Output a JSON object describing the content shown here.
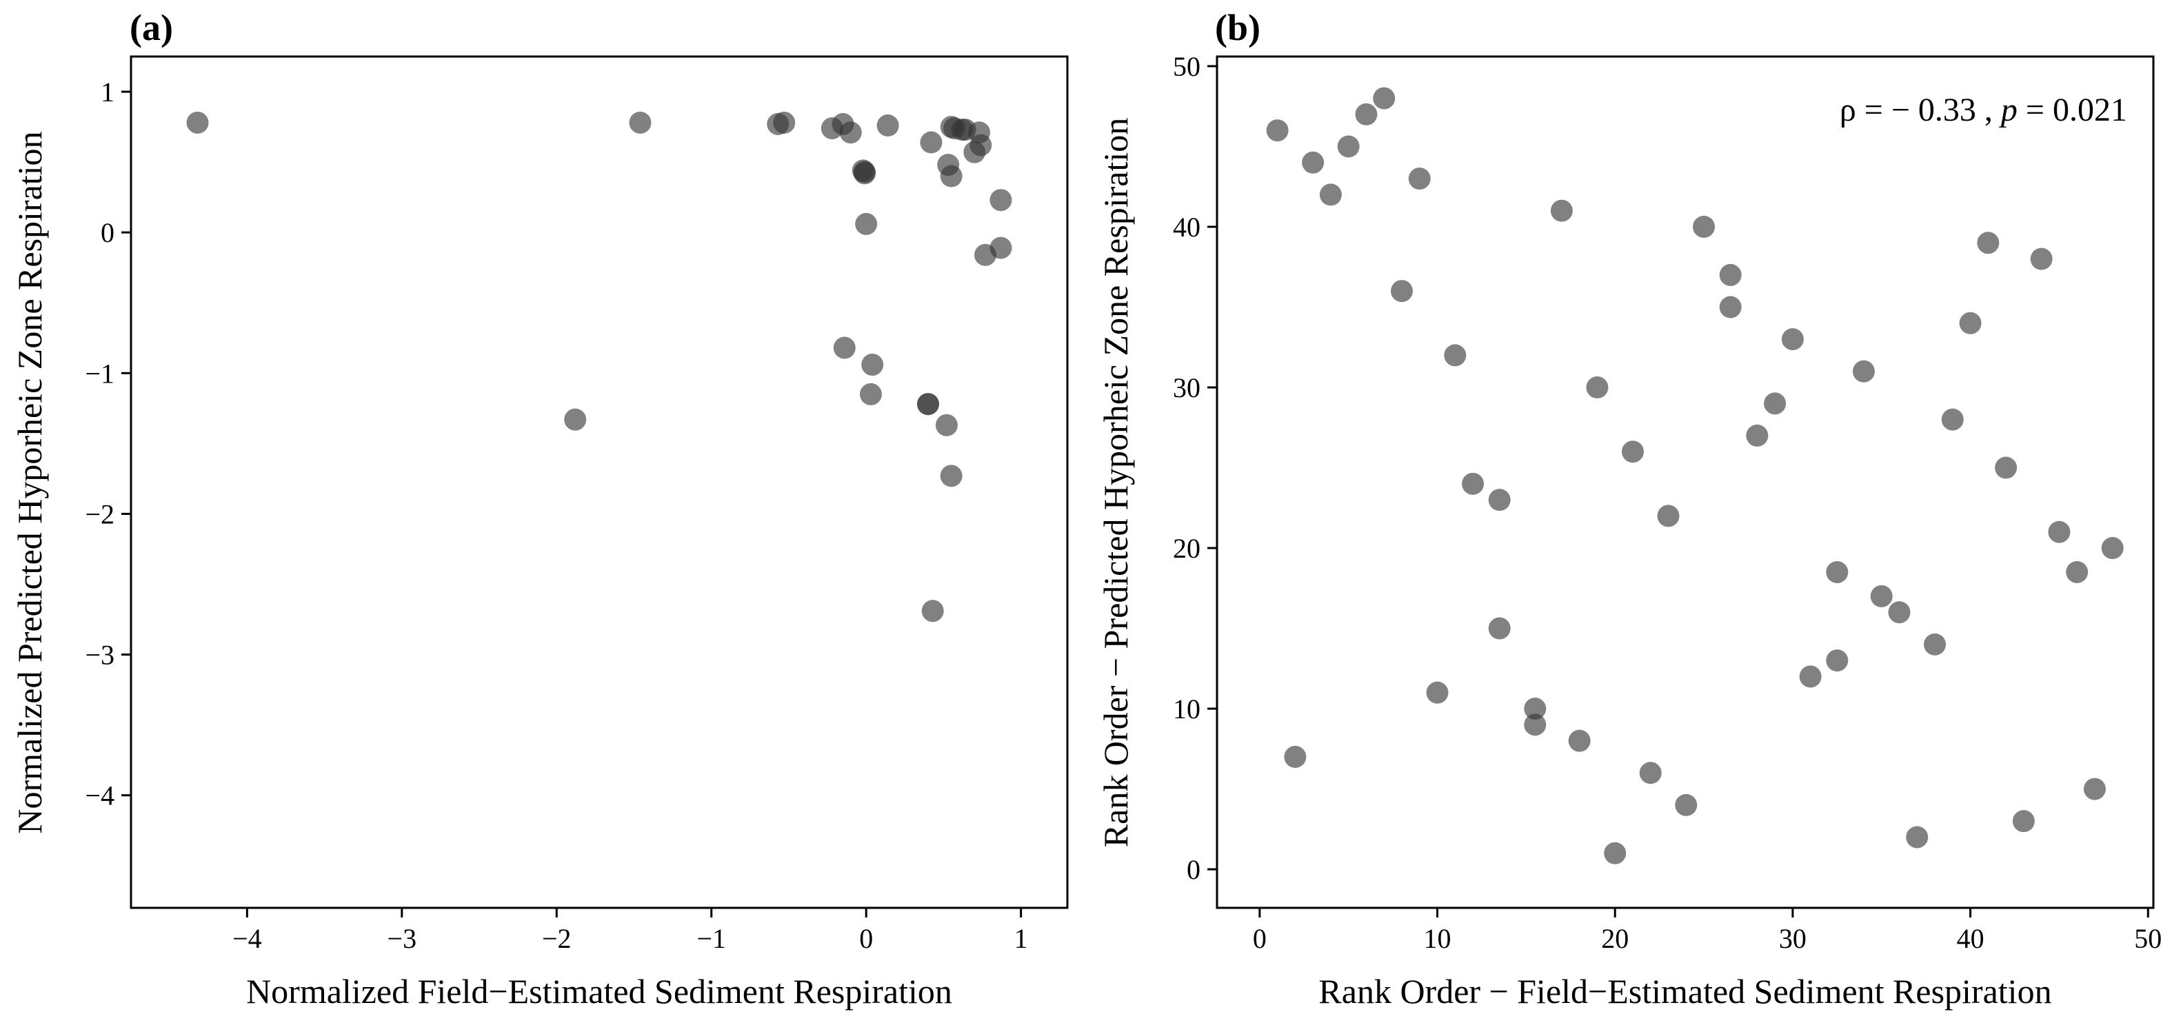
{
  "chart_data": [
    {
      "type": "scatter",
      "panel_label": "(a)",
      "title": "",
      "xlabel": "Normalized Field−Estimated Sediment Respiration",
      "ylabel": "Normalized Predicted Hyporheic Zone Respiration",
      "xlim": [
        -4.75,
        1.3
      ],
      "ylim": [
        -4.8,
        1.25
      ],
      "xticks": [
        -4,
        -3,
        -2,
        -1,
        0,
        1
      ],
      "xtick_labels": [
        "−4",
        "−3",
        "−2",
        "−1",
        "0",
        "1"
      ],
      "yticks": [
        -4,
        -3,
        -2,
        -1,
        0,
        1
      ],
      "ytick_labels": [
        "−4",
        "−3",
        "−2",
        "−1",
        "0",
        "1"
      ],
      "grid": false,
      "legend": "none",
      "point_color": "#333333",
      "series": [
        {
          "x": [
            -4.32,
            -1.46,
            -1.88,
            -0.57,
            -0.53,
            -0.22,
            -0.15,
            -0.1,
            0.14,
            -0.01,
            -0.02,
            -0.01,
            0.0,
            -0.14,
            0.04,
            0.03,
            0.42,
            0.4,
            0.53,
            0.55,
            0.55,
            0.57,
            0.62,
            0.64,
            0.73,
            0.7,
            0.74,
            0.87,
            0.77,
            0.87,
            0.4,
            0.52,
            0.55,
            0.43
          ],
          "y": [
            0.78,
            0.78,
            -1.33,
            0.77,
            0.78,
            0.74,
            0.77,
            0.71,
            0.76,
            0.43,
            0.44,
            0.42,
            0.06,
            -0.82,
            -0.94,
            -1.15,
            0.64,
            -1.22,
            0.48,
            0.4,
            0.75,
            0.74,
            0.73,
            0.73,
            0.71,
            0.57,
            0.62,
            0.23,
            -0.16,
            -0.11,
            -1.22,
            -1.37,
            -1.73,
            -2.69
          ]
        }
      ]
    },
    {
      "type": "scatter",
      "panel_label": "(b)",
      "title": "",
      "xlabel": "Rank Order − Field−Estimated Sediment Respiration",
      "ylabel": "Rank Order − Predicted Hyporheic Zone Respiration",
      "xlim": [
        -2.4,
        50.3
      ],
      "ylim": [
        -2.4,
        50.6
      ],
      "xticks": [
        0,
        10,
        20,
        30,
        40,
        50
      ],
      "xtick_labels": [
        "0",
        "10",
        "20",
        "30",
        "40",
        "50"
      ],
      "yticks": [
        0,
        10,
        20,
        30,
        40,
        50
      ],
      "ytick_labels": [
        "0",
        "10",
        "20",
        "30",
        "40",
        "50"
      ],
      "grid": false,
      "legend": "none",
      "point_color": "#333333",
      "annotation": {
        "rho_symbol": "ρ",
        "rho_text": " = − 0.33 , ",
        "p_symbol": "p",
        "p_text": " = 0.021",
        "placement": "top-right"
      },
      "series": [
        {
          "x": [
            1,
            2,
            3,
            4,
            5,
            6,
            7,
            8,
            9,
            10,
            11,
            12,
            13.5,
            13.5,
            15.5,
            15.5,
            17,
            18,
            19,
            20,
            21,
            22,
            23,
            24,
            25,
            26.5,
            26.5,
            28,
            29,
            30,
            31,
            32.5,
            32.5,
            34,
            35,
            36,
            37,
            38,
            39,
            40,
            41,
            42,
            43,
            44,
            45,
            46,
            47,
            48
          ],
          "y": [
            46,
            7,
            44,
            42,
            45,
            47,
            48,
            36,
            43,
            11,
            32,
            24,
            23,
            15,
            10,
            9,
            41,
            8,
            30,
            1,
            26,
            6,
            22,
            4,
            40,
            37,
            35,
            27,
            29,
            33,
            12,
            18.5,
            13,
            31,
            17,
            16,
            2,
            14,
            28,
            34,
            39,
            25,
            3,
            38,
            21,
            18.5,
            5,
            20
          ]
        }
      ]
    }
  ]
}
